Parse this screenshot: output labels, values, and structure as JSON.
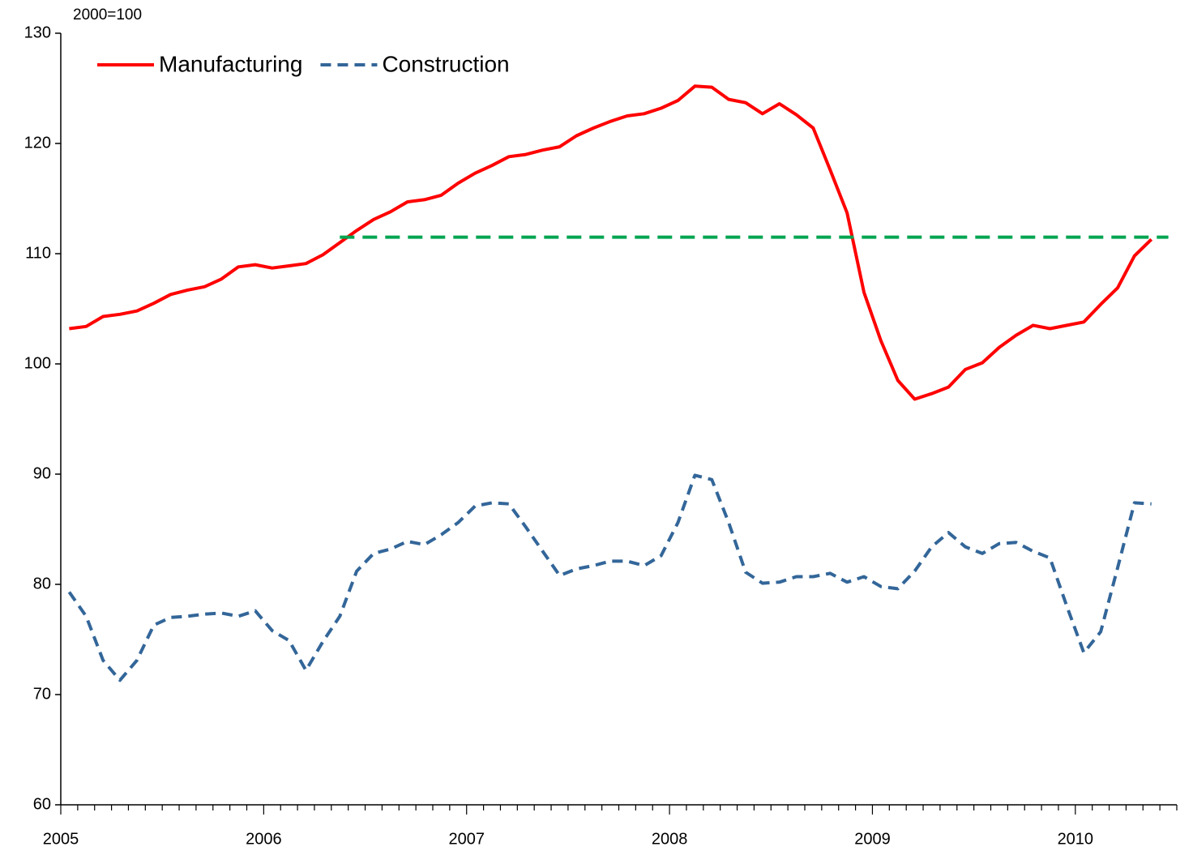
{
  "chart_data": {
    "type": "line",
    "y_label": "2000=100",
    "categories": [
      "2005",
      null,
      null,
      null,
      null,
      null,
      null,
      null,
      null,
      null,
      null,
      null,
      "2006",
      null,
      null,
      null,
      null,
      null,
      null,
      null,
      null,
      null,
      null,
      null,
      "2007",
      null,
      null,
      null,
      null,
      null,
      null,
      null,
      null,
      null,
      null,
      null,
      "2008",
      null,
      null,
      null,
      null,
      null,
      null,
      null,
      null,
      null,
      null,
      null,
      "2009",
      null,
      null,
      null,
      null,
      null,
      null,
      null,
      null,
      null,
      null,
      null,
      "2010",
      null,
      null,
      null,
      null,
      null
    ],
    "series": [
      {
        "name": "Manufacturing",
        "color": "#ff0000",
        "line_style": "solid",
        "values": [
          103.2,
          103.4,
          104.3,
          104.5,
          104.8,
          105.5,
          106.3,
          106.7,
          107.0,
          107.7,
          108.8,
          109.0,
          108.7,
          108.9,
          109.1,
          109.9,
          111.0,
          112.1,
          113.1,
          113.8,
          114.7,
          114.9,
          115.3,
          116.4,
          117.3,
          118.0,
          118.8,
          119.0,
          119.4,
          119.7,
          120.7,
          121.4,
          122.0,
          122.5,
          122.7,
          123.2,
          123.9,
          125.2,
          125.1,
          124.0,
          123.7,
          122.7,
          123.6,
          122.6,
          121.4,
          117.6,
          113.7,
          106.5,
          102.1,
          98.5,
          96.8,
          97.3,
          97.9,
          99.5,
          100.1,
          101.5,
          102.6,
          103.5,
          103.2,
          103.5,
          103.8,
          105.4,
          106.9,
          109.8,
          111.3,
          null
        ]
      },
      {
        "name": "Construction",
        "color": "#336699",
        "line_style": "dashed",
        "values": [
          79.3,
          77.1,
          73.1,
          71.3,
          73.1,
          76.3,
          77.0,
          77.1,
          77.3,
          77.4,
          77.1,
          77.6,
          75.8,
          74.9,
          72.2,
          74.8,
          77.1,
          81.2,
          82.8,
          83.2,
          83.9,
          83.6,
          84.5,
          85.6,
          87.1,
          87.4,
          87.3,
          85.2,
          83.0,
          80.8,
          81.4,
          81.7,
          82.1,
          82.1,
          81.7,
          82.6,
          85.6,
          89.9,
          89.5,
          85.6,
          81.1,
          80.1,
          80.2,
          80.7,
          80.7,
          81.0,
          80.2,
          80.7,
          79.8,
          79.6,
          81.2,
          83.4,
          84.7,
          83.4,
          82.8,
          83.7,
          83.8,
          83.0,
          82.4,
          78.0,
          73.8,
          75.7,
          81.5,
          87.4,
          87.3,
          null
        ]
      },
      {
        "color": "#00a550",
        "line_style": "dashed",
        "values": [
          null,
          null,
          null,
          null,
          null,
          null,
          null,
          null,
          null,
          null,
          null,
          null,
          null,
          null,
          null,
          null,
          111.5,
          111.5,
          111.5,
          111.5,
          111.5,
          111.5,
          111.5,
          111.5,
          111.5,
          111.5,
          111.5,
          111.5,
          111.5,
          111.5,
          111.5,
          111.5,
          111.5,
          111.5,
          111.5,
          111.5,
          111.5,
          111.5,
          111.5,
          111.5,
          111.5,
          111.5,
          111.5,
          111.5,
          111.5,
          111.5,
          111.5,
          111.5,
          111.5,
          111.5,
          111.5,
          111.5,
          111.5,
          111.5,
          111.5,
          111.5,
          111.5,
          111.5,
          111.5,
          111.5,
          111.5,
          111.5,
          111.5,
          111.5,
          111.5,
          111.5
        ]
      }
    ],
    "ylim": [
      60,
      130
    ],
    "yticks": [
      60,
      70,
      80,
      90,
      100,
      110,
      120,
      130
    ],
    "grid": false,
    "legend": "top-left"
  }
}
